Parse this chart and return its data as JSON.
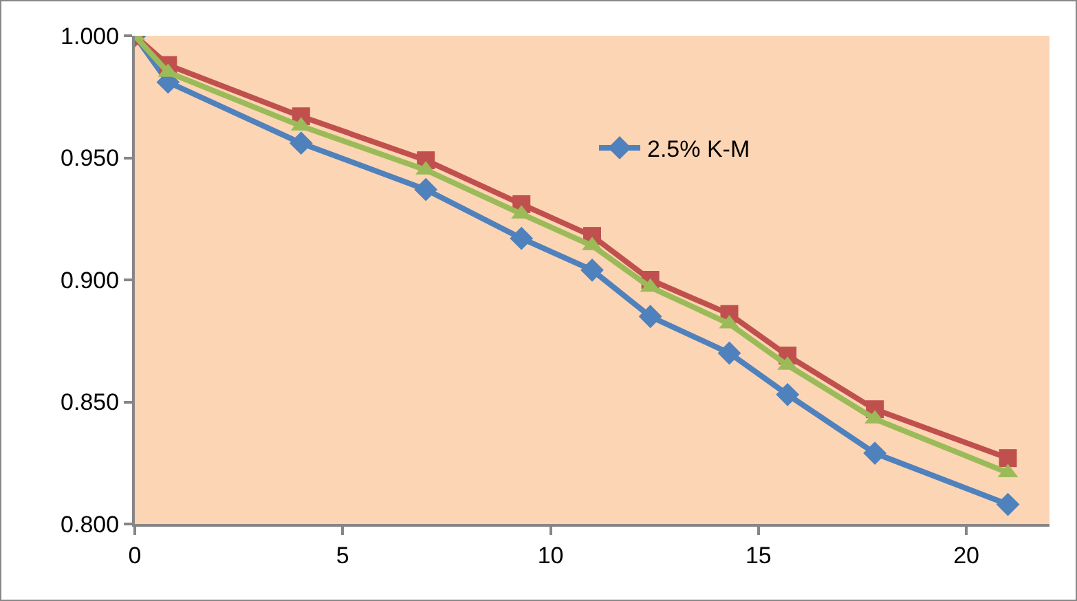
{
  "chart_data": {
    "type": "line",
    "x": [
      0,
      0.8,
      4,
      7,
      9.3,
      11,
      12.4,
      14.3,
      15.7,
      17.8,
      21
    ],
    "series": [
      {
        "name": "2.5% K-M",
        "color": "#4f81bd",
        "marker": "diamond",
        "values": [
          1.0,
          0.981,
          0.956,
          0.937,
          0.917,
          0.904,
          0.885,
          0.87,
          0.853,
          0.829,
          0.808
        ]
      },
      {
        "color": "#c0504d",
        "marker": "square",
        "values": [
          1.0,
          0.988,
          0.967,
          0.949,
          0.931,
          0.918,
          0.9,
          0.886,
          0.869,
          0.847,
          0.827
        ]
      },
      {
        "color": "#9bbb59",
        "marker": "triangle",
        "values": [
          1.0,
          0.985,
          0.963,
          0.945,
          0.927,
          0.914,
          0.897,
          0.882,
          0.865,
          0.843,
          0.821
        ]
      }
    ],
    "xlim": [
      0,
      22
    ],
    "xticks": [
      0,
      5,
      10,
      15,
      20
    ],
    "ylim": [
      0.8,
      1.0
    ],
    "yticks": [
      {
        "value": 0.8,
        "label": "0.800"
      },
      {
        "value": 0.85,
        "label": "0.850"
      },
      {
        "value": 0.9,
        "label": "0.900"
      },
      {
        "value": 0.95,
        "label": "0.950"
      },
      {
        "value": 1.0,
        "label": "1.000"
      }
    ],
    "grid": false,
    "legend": "top",
    "line_style": "solid"
  }
}
